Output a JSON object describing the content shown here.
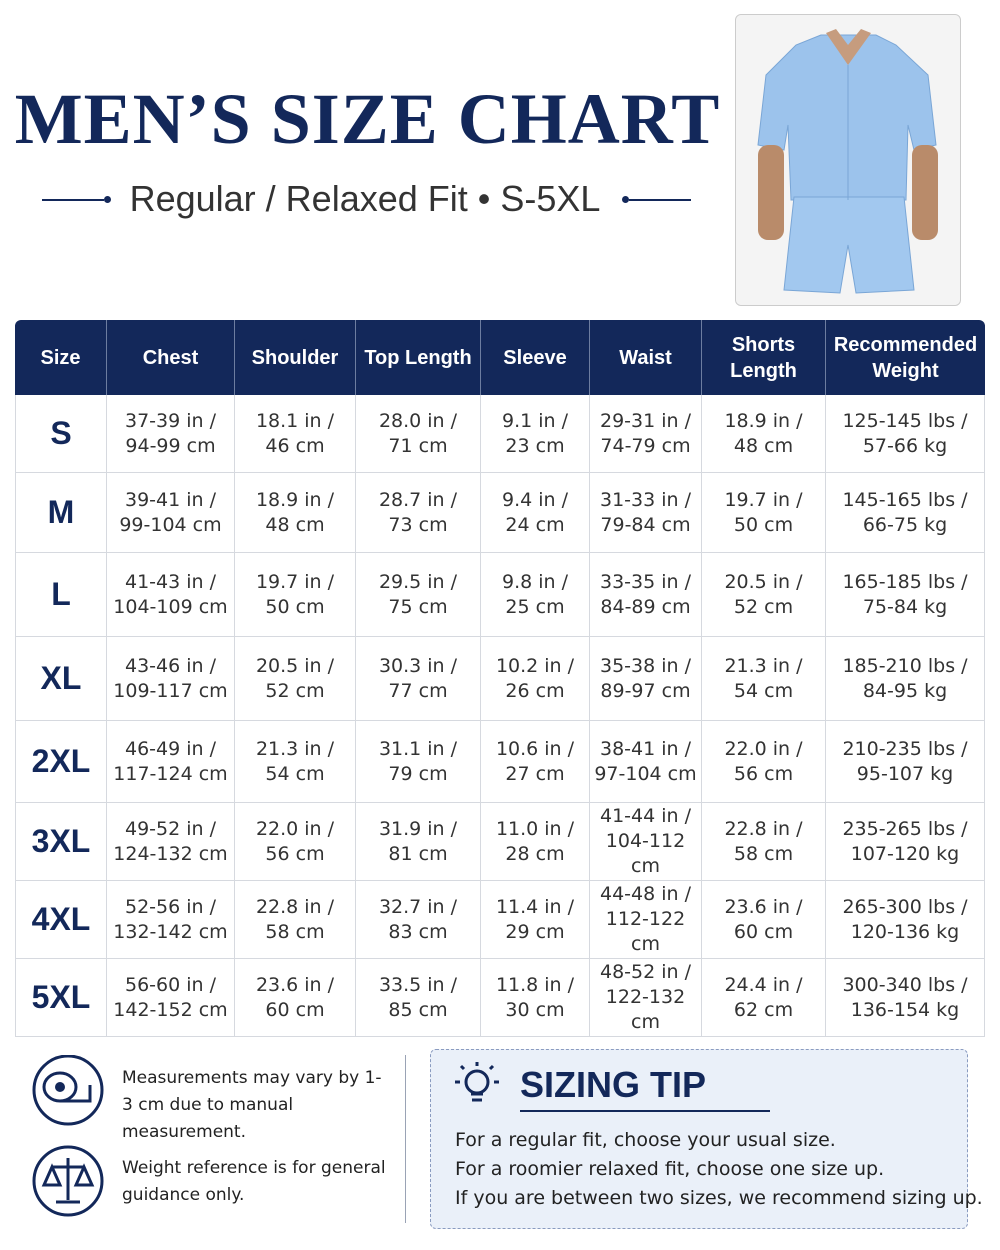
{
  "header": {
    "title": "MEN’S SIZE CHART",
    "subtitle": "Regular / Relaxed Fit • S-5XL"
  },
  "table": {
    "columns": [
      "Size",
      "Chest",
      "Shoulder",
      "Top Length",
      "Sleeve",
      "Waist",
      "Shorts Length",
      "Recommended Weight"
    ],
    "rows": [
      [
        "S",
        [
          "37-39 in /",
          "94-99 cm"
        ],
        [
          "18.1 in /",
          "46 cm"
        ],
        [
          "28.0 in /",
          "71 cm"
        ],
        [
          "9.1 in /",
          "23 cm"
        ],
        [
          "29-31 in /",
          "74-79 cm"
        ],
        [
          "18.9 in /",
          "48 cm"
        ],
        [
          "125-145 lbs /",
          "57-66 kg"
        ]
      ],
      [
        "M",
        [
          "39-41 in /",
          "99-104 cm"
        ],
        [
          "18.9 in /",
          "48 cm"
        ],
        [
          "28.7 in /",
          "73 cm"
        ],
        [
          "9.4 in /",
          "24 cm"
        ],
        [
          "31-33 in /",
          "79-84 cm"
        ],
        [
          "19.7 in /",
          "50 cm"
        ],
        [
          "145-165 lbs /",
          "66-75 kg"
        ]
      ],
      [
        "L",
        [
          "41-43 in /",
          "104-109 cm"
        ],
        [
          "19.7 in /",
          "50 cm"
        ],
        [
          "29.5 in /",
          "75 cm"
        ],
        [
          "9.8 in /",
          "25 cm"
        ],
        [
          "33-35 in /",
          "84-89 cm"
        ],
        [
          "20.5 in /",
          "52 cm"
        ],
        [
          "165-185 lbs /",
          "75-84 kg"
        ]
      ],
      [
        "XL",
        [
          "43-46 in /",
          "109-117 cm"
        ],
        [
          "20.5 in /",
          "52 cm"
        ],
        [
          "30.3 in /",
          "77 cm"
        ],
        [
          "10.2 in /",
          "26 cm"
        ],
        [
          "35-38 in /",
          "89-97 cm"
        ],
        [
          "21.3 in /",
          "54 cm"
        ],
        [
          "185-210 lbs /",
          "84-95 kg"
        ]
      ],
      [
        "2XL",
        [
          "46-49 in /",
          "117-124 cm"
        ],
        [
          "21.3 in /",
          "54 cm"
        ],
        [
          "31.1 in /",
          "79 cm"
        ],
        [
          "10.6 in /",
          "27 cm"
        ],
        [
          "38-41 in /",
          "97-104 cm"
        ],
        [
          "22.0 in /",
          "56 cm"
        ],
        [
          "210-235 lbs /",
          "95-107 kg"
        ]
      ],
      [
        "3XL",
        [
          "49-52 in /",
          "124-132 cm"
        ],
        [
          "22.0 in /",
          "56 cm"
        ],
        [
          "31.9 in /",
          "81 cm"
        ],
        [
          "11.0 in /",
          "28 cm"
        ],
        [
          "41-44 in /",
          "104-112 cm"
        ],
        [
          "22.8 in /",
          "58 cm"
        ],
        [
          "235-265 lbs /",
          "107-120 kg"
        ]
      ],
      [
        "4XL",
        [
          "52-56 in /",
          "132-142 cm"
        ],
        [
          "22.8 in /",
          "58 cm"
        ],
        [
          "32.7 in /",
          "83 cm"
        ],
        [
          "11.4 in /",
          "29 cm"
        ],
        [
          "44-48 in /",
          "112-122 cm"
        ],
        [
          "23.6 in /",
          "60 cm"
        ],
        [
          "265-300 lbs /",
          "120-136 kg"
        ]
      ],
      [
        "5XL",
        [
          "56-60 in /",
          "142-152 cm"
        ],
        [
          "23.6 in /",
          "60 cm"
        ],
        [
          "33.5 in /",
          "85 cm"
        ],
        [
          "11.8 in /",
          "30 cm"
        ],
        [
          "48-52 in /",
          "122-132 cm"
        ],
        [
          "24.4 in /",
          "62 cm"
        ],
        [
          "300-340 lbs /",
          "136-154 kg"
        ]
      ]
    ]
  },
  "notes": [
    "Measurements may vary by 1-3 cm due to manual measurement.",
    "Weight reference is for general guidance only."
  ],
  "tip": {
    "title": "SIZING TIP",
    "lines": [
      "For a regular fit, choose your usual size.",
      "For a roomier relaxed fit, choose one size up.",
      "If you are between two sizes, we recommend sizing up."
    ]
  }
}
